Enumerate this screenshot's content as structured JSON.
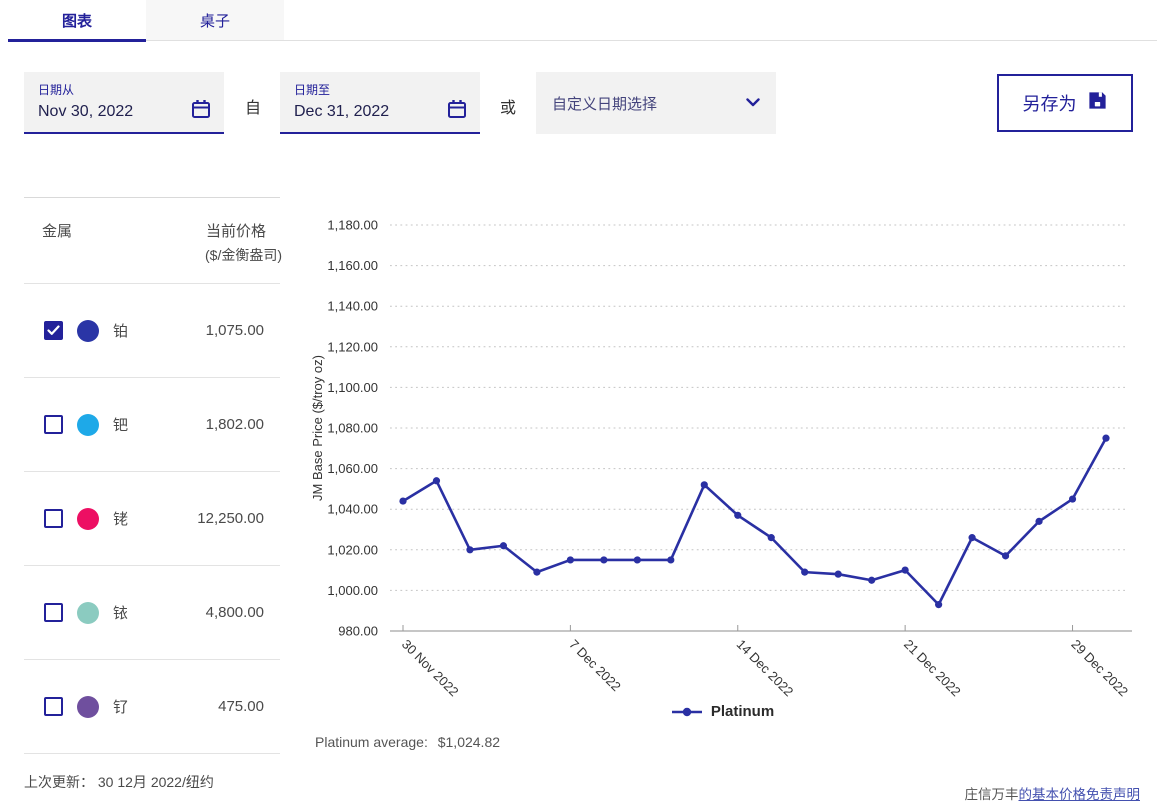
{
  "tabs": [
    {
      "label": "图表",
      "active": true
    },
    {
      "label": "桌子",
      "active": false
    }
  ],
  "filters": {
    "date_from": {
      "label": "日期从",
      "value": "Nov 30, 2022"
    },
    "between_text": "自",
    "date_to": {
      "label": "日期至",
      "value": "Dec 31, 2022"
    },
    "or_text": "或",
    "preset_dropdown": {
      "selected": "自定义日期选择"
    },
    "save_button": {
      "label": "另存为"
    }
  },
  "metals_table": {
    "header_metal": "金属",
    "header_price_line1": "当前价格",
    "header_price_line2": "($/金衡盎司)",
    "rows": [
      {
        "name": "铂",
        "price": "1,075.00",
        "checked": true,
        "color": "#2a35a6"
      },
      {
        "name": "钯",
        "price": "1,802.00",
        "checked": false,
        "color": "#1ea9e8"
      },
      {
        "name": "铑",
        "price": "12,250.00",
        "checked": false,
        "color": "#ed0f63"
      },
      {
        "name": "铱",
        "price": "4,800.00",
        "checked": false,
        "color": "#8bcbc0"
      },
      {
        "name": "钌",
        "price": "475.00",
        "checked": false,
        "color": "#6f4f9e"
      }
    ],
    "last_updated": "上次更新：  30 12月 2022/纽约"
  },
  "chart_data": {
    "type": "line",
    "ylabel": "JM Base Price ($/troy oz)",
    "ylim": [
      980,
      1180
    ],
    "ytick_step": 20,
    "grid": "horizontal-dotted",
    "legend_position": "bottom-center",
    "x": [
      "30 Nov 2022",
      "1 Dec 2022",
      "2 Dec 2022",
      "5 Dec 2022",
      "6 Dec 2022",
      "7 Dec 2022",
      "8 Dec 2022",
      "9 Dec 2022",
      "12 Dec 2022",
      "13 Dec 2022",
      "14 Dec 2022",
      "15 Dec 2022",
      "16 Dec 2022",
      "19 Dec 2022",
      "20 Dec 2022",
      "21 Dec 2022",
      "22 Dec 2022",
      "23 Dec 2022",
      "27 Dec 2022",
      "28 Dec 2022",
      "29 Dec 2022",
      "30 Dec 2022"
    ],
    "series": [
      {
        "name": "Platinum",
        "color": "#2a30a3",
        "values": [
          1044,
          1054,
          1020,
          1022,
          1009,
          1015,
          1015,
          1015,
          1015,
          1052,
          1037,
          1026,
          1009,
          1008,
          1005,
          1010,
          993,
          1026,
          1017,
          1034,
          1045,
          1075
        ]
      }
    ],
    "xtick_indices": [
      0,
      5,
      10,
      15,
      20
    ],
    "xtick_labels": [
      "30 Nov 2022",
      "7 Dec 2022",
      "14 Dec 2022",
      "21 Dec 2022",
      "29 Dec 2022"
    ]
  },
  "chart_footer": {
    "legend_label": "Platinum",
    "average_label": "Platinum average:",
    "average_value": "$1,024.82"
  },
  "footer": {
    "disclaimer_prefix": "庄信万丰",
    "disclaimer_link": "的基本价格免责声明"
  },
  "colors": {
    "primary": "#23219a",
    "line": "#2a30a3",
    "grid": "#c4c4c4",
    "axis": "#b3b3b3",
    "tick_text": "#333333"
  }
}
